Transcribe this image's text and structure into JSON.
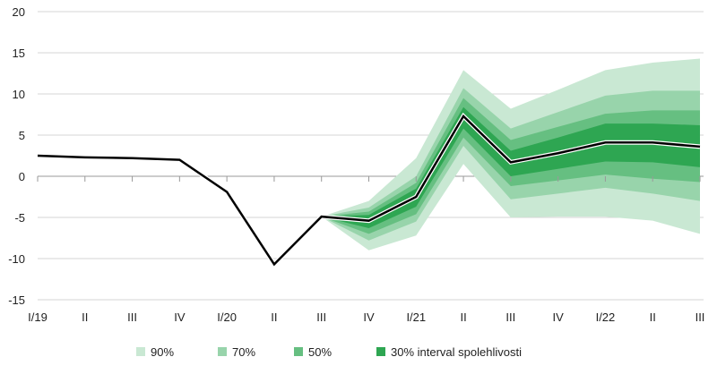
{
  "chart_data": {
    "type": "area",
    "title": "",
    "xlabel": "",
    "ylabel": "",
    "ylim": [
      -15,
      20
    ],
    "yticks": [
      20,
      15,
      10,
      5,
      0,
      -5,
      -10,
      -15
    ],
    "grid": true,
    "legend_position": "bottom",
    "categories": [
      "I/19",
      "II",
      "III",
      "IV",
      "I/20",
      "II",
      "III",
      "IV",
      "I/21",
      "II",
      "III",
      "IV",
      "I/22",
      "II",
      "III"
    ],
    "line": [
      2.5,
      2.3,
      2.2,
      2.0,
      -1.9,
      -10.7,
      -4.9,
      -5.4,
      -2.5,
      7.3,
      1.7,
      2.8,
      4.1,
      4.1,
      3.6
    ],
    "fan_start_index": 6,
    "bands": [
      {
        "name": "90%",
        "color": "#c9e8d3",
        "upper": [
          -4.9,
          -3.0,
          2.2,
          12.9,
          8.2,
          10.5,
          12.9,
          13.8,
          14.3
        ],
        "lower": [
          -4.9,
          -9.0,
          -7.2,
          1.5,
          -5.0,
          -4.9,
          -4.9,
          -5.4,
          -7.0
        ]
      },
      {
        "name": "70%",
        "color": "#98d4ab",
        "upper": [
          -4.9,
          -3.8,
          0.0,
          10.7,
          5.8,
          7.8,
          9.8,
          10.4,
          10.4
        ],
        "lower": [
          -4.9,
          -7.8,
          -5.5,
          3.7,
          -2.8,
          -2.1,
          -1.4,
          -2.1,
          -3.0
        ]
      },
      {
        "name": "50%",
        "color": "#66bf81",
        "upper": [
          -4.9,
          -4.3,
          -0.8,
          9.5,
          4.4,
          6.0,
          7.6,
          8.0,
          8.0
        ],
        "lower": [
          -4.9,
          -7.0,
          -4.6,
          4.7,
          -1.2,
          -0.5,
          0.2,
          -0.3,
          -0.7
        ]
      },
      {
        "name": "30% interval spolehlivosti",
        "color": "#2ea652",
        "upper": [
          -4.9,
          -4.7,
          -1.5,
          8.4,
          3.1,
          4.7,
          6.4,
          6.4,
          6.2
        ],
        "lower": [
          -4.9,
          -6.3,
          -3.7,
          5.8,
          0.0,
          0.9,
          1.8,
          1.7,
          1.1
        ]
      }
    ]
  }
}
